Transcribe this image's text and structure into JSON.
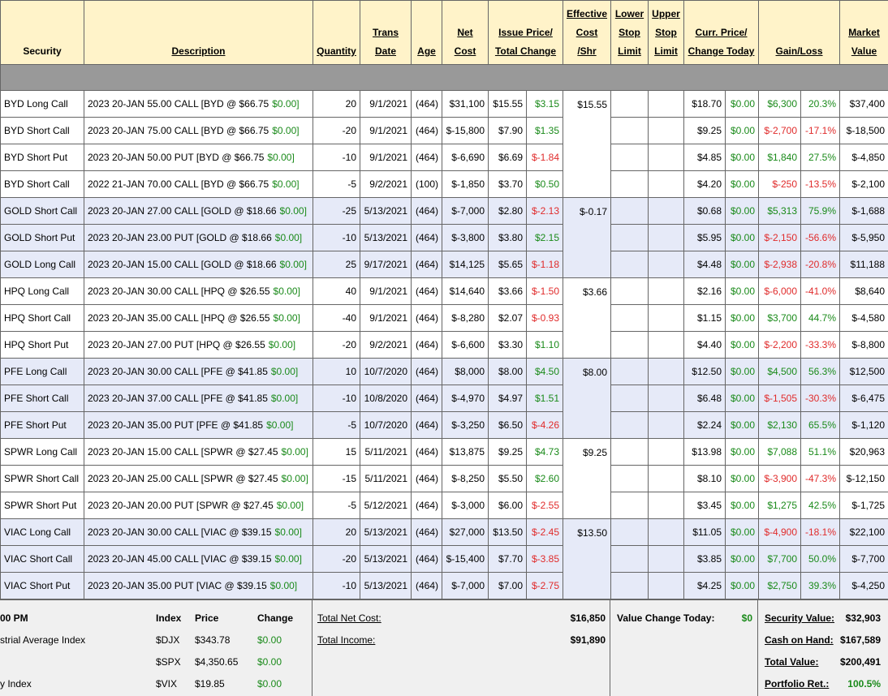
{
  "header": {
    "columns": [
      [
        "Security"
      ],
      [
        "Description"
      ],
      [
        "Quantity"
      ],
      [
        "Trans",
        "Date"
      ],
      [
        "Age"
      ],
      [
        "Net",
        "Cost"
      ],
      [
        "Issue Price/",
        "Total Change"
      ],
      [
        "Effective",
        "Cost",
        "/Shr"
      ],
      [
        "Lower",
        "Stop",
        "Limit"
      ],
      [
        "Upper",
        "Stop",
        "Limit"
      ],
      [
        "Curr. Price/",
        "Change Today"
      ],
      [
        "Gain/Loss"
      ],
      [
        "Market",
        "Value"
      ]
    ]
  },
  "table": {
    "groups": [
      {
        "effective_cost": "$15.55",
        "rows": [
          [
            "BYD Long Call",
            "2023 20-JAN 55.00 CALL [BYD @ $66.75",
            "$0.00]",
            "20",
            "9/1/2021",
            "(464)",
            "$31,100",
            "$15.55",
            "$3.15",
            "$18.70",
            "$0.00",
            "$6,300",
            "20.3%",
            "$37,400"
          ],
          [
            "BYD Short Call",
            "2023 20-JAN 75.00 CALL [BYD @ $66.75",
            "$0.00]",
            "-20",
            "9/1/2021",
            "(464)",
            "$-15,800",
            "$7.90",
            "$1.35",
            "$9.25",
            "$0.00",
            "$-2,700",
            "-17.1%",
            "$-18,500"
          ],
          [
            "BYD Short Put",
            "2023 20-JAN 50.00 PUT [BYD @ $66.75",
            "$0.00]",
            "-10",
            "9/1/2021",
            "(464)",
            "$-6,690",
            "$6.69",
            "$-1.84",
            "$4.85",
            "$0.00",
            "$1,840",
            "27.5%",
            "$-4,850"
          ],
          [
            "BYD Short Call",
            "2022 21-JAN 70.00 CALL [BYD @ $66.75",
            "$0.00]",
            "-5",
            "9/2/2021",
            "(100)",
            "$-1,850",
            "$3.70",
            "$0.50",
            "$4.20",
            "$0.00",
            "$-250",
            "-13.5%",
            "$-2,100"
          ]
        ]
      },
      {
        "effective_cost": "$-0.17",
        "rows": [
          [
            "GOLD Short Call",
            "2023 20-JAN 27.00 CALL [GOLD @ $18.66",
            "$0.00]",
            "-25",
            "5/13/2021",
            "(464)",
            "$-7,000",
            "$2.80",
            "$-2.13",
            "$0.68",
            "$0.00",
            "$5,313",
            "75.9%",
            "$-1,688"
          ],
          [
            "GOLD Short Put",
            "2023 20-JAN 23.00 PUT [GOLD @ $18.66",
            "$0.00]",
            "-10",
            "5/13/2021",
            "(464)",
            "$-3,800",
            "$3.80",
            "$2.15",
            "$5.95",
            "$0.00",
            "$-2,150",
            "-56.6%",
            "$-5,950"
          ],
          [
            "GOLD Long Call",
            "2023 20-JAN 15.00 CALL [GOLD @ $18.66",
            "$0.00]",
            "25",
            "9/17/2021",
            "(464)",
            "$14,125",
            "$5.65",
            "$-1.18",
            "$4.48",
            "$0.00",
            "$-2,938",
            "-20.8%",
            "$11,188"
          ]
        ]
      },
      {
        "effective_cost": "$3.66",
        "rows": [
          [
            "HPQ Long Call",
            "2023 20-JAN 30.00 CALL [HPQ @ $26.55",
            "$0.00]",
            "40",
            "9/1/2021",
            "(464)",
            "$14,640",
            "$3.66",
            "$-1.50",
            "$2.16",
            "$0.00",
            "$-6,000",
            "-41.0%",
            "$8,640"
          ],
          [
            "HPQ Short Call",
            "2023 20-JAN 35.00 CALL [HPQ @ $26.55",
            "$0.00]",
            "-40",
            "9/1/2021",
            "(464)",
            "$-8,280",
            "$2.07",
            "$-0.93",
            "$1.15",
            "$0.00",
            "$3,700",
            "44.7%",
            "$-4,580"
          ],
          [
            "HPQ Short Put",
            "2023 20-JAN 27.00 PUT [HPQ @ $26.55",
            "$0.00]",
            "-20",
            "9/2/2021",
            "(464)",
            "$-6,600",
            "$3.30",
            "$1.10",
            "$4.40",
            "$0.00",
            "$-2,200",
            "-33.3%",
            "$-8,800"
          ]
        ]
      },
      {
        "effective_cost": "$8.00",
        "rows": [
          [
            "PFE Long Call",
            "2023 20-JAN 30.00 CALL [PFE @ $41.85",
            "$0.00]",
            "10",
            "10/7/2020",
            "(464)",
            "$8,000",
            "$8.00",
            "$4.50",
            "$12.50",
            "$0.00",
            "$4,500",
            "56.3%",
            "$12,500"
          ],
          [
            "PFE Short Call",
            "2023 20-JAN 37.00 CALL [PFE @ $41.85",
            "$0.00]",
            "-10",
            "10/8/2020",
            "(464)",
            "$-4,970",
            "$4.97",
            "$1.51",
            "$6.48",
            "$0.00",
            "$-1,505",
            "-30.3%",
            "$-6,475"
          ],
          [
            "PFE Short Put",
            "2023 20-JAN 35.00 PUT [PFE @ $41.85",
            "$0.00]",
            "-5",
            "10/7/2020",
            "(464)",
            "$-3,250",
            "$6.50",
            "$-4.26",
            "$2.24",
            "$0.00",
            "$2,130",
            "65.5%",
            "$-1,120"
          ]
        ]
      },
      {
        "effective_cost": "$9.25",
        "rows": [
          [
            "SPWR Long Call",
            "2023 20-JAN 15.00 CALL [SPWR @ $27.45",
            "$0.00]",
            "15",
            "5/11/2021",
            "(464)",
            "$13,875",
            "$9.25",
            "$4.73",
            "$13.98",
            "$0.00",
            "$7,088",
            "51.1%",
            "$20,963"
          ],
          [
            "SPWR Short Call",
            "2023 20-JAN 25.00 CALL [SPWR @ $27.45",
            "$0.00]",
            "-15",
            "5/11/2021",
            "(464)",
            "$-8,250",
            "$5.50",
            "$2.60",
            "$8.10",
            "$0.00",
            "$-3,900",
            "-47.3%",
            "$-12,150"
          ],
          [
            "SPWR Short Put",
            "2023 20-JAN 20.00 PUT [SPWR @ $27.45",
            "$0.00]",
            "-5",
            "5/12/2021",
            "(464)",
            "$-3,000",
            "$6.00",
            "$-2.55",
            "$3.45",
            "$0.00",
            "$1,275",
            "42.5%",
            "$-1,725"
          ]
        ]
      },
      {
        "effective_cost": "$13.50",
        "rows": [
          [
            "VIAC Long Call",
            "2023 20-JAN 30.00 CALL [VIAC @ $39.15",
            "$0.00]",
            "20",
            "5/13/2021",
            "(464)",
            "$27,000",
            "$13.50",
            "$-2.45",
            "$11.05",
            "$0.00",
            "$-4,900",
            "-18.1%",
            "$22,100"
          ],
          [
            "VIAC Short Call",
            "2023 20-JAN 45.00 CALL [VIAC @ $39.15",
            "$0.00]",
            "-20",
            "5/13/2021",
            "(464)",
            "$-15,400",
            "$7.70",
            "$-3.85",
            "$3.85",
            "$0.00",
            "$7,700",
            "50.0%",
            "$-7,700"
          ],
          [
            "VIAC Short Put",
            "2023 20-JAN 35.00 PUT [VIAC @ $39.15",
            "$0.00]",
            "-10",
            "5/13/2021",
            "(464)",
            "$-7,000",
            "$7.00",
            "$-2.75",
            "$4.25",
            "$0.00",
            "$2,750",
            "39.3%",
            "$-4,250"
          ]
        ]
      }
    ]
  },
  "footer": {
    "market": {
      "time": "00 PM",
      "headers": [
        "Index",
        "Price",
        "Change"
      ],
      "rows": [
        {
          "label": "strial Average Index",
          "index": "$DJX",
          "price": "$343.78",
          "change": "$0.00"
        },
        {
          "index": "$SPX",
          "price": "$4,350.65",
          "change": "$0.00"
        },
        {
          "label": "y Index",
          "index": "$VIX",
          "price": "$19.85",
          "change": "$0.00"
        }
      ]
    },
    "totals": [
      {
        "label": "Total Net Cost:",
        "value": "$16,850"
      },
      {
        "label": "Total Income:",
        "value": "$91,890"
      }
    ],
    "today": {
      "label": "Value Change Today:",
      "value": "$0"
    },
    "portfolio": [
      {
        "label": "Security Value:",
        "value": "$32,903"
      },
      {
        "label": "Cash on Hand:",
        "value": "$167,589"
      },
      {
        "label": "Total Value:",
        "value": "$200,491"
      },
      {
        "label": "Portfolio Ret.:",
        "value": "100.5%"
      }
    ]
  }
}
